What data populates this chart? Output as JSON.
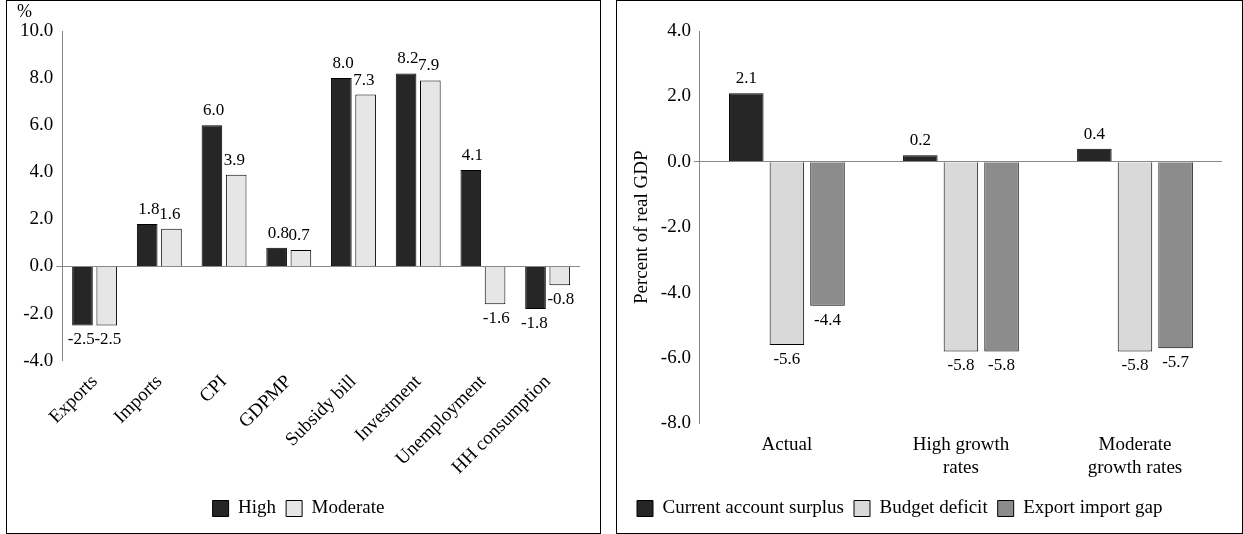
{
  "chart_data": [
    {
      "type": "bar",
      "ylabel": "%",
      "categories": [
        "Exports",
        "Imports",
        "CPI",
        "GDPMP",
        "Subsidy bill",
        "Investment",
        "Unemployment",
        "HH consumption"
      ],
      "series": [
        {
          "name": "High",
          "color": "#262626",
          "values": [
            -2.5,
            1.8,
            6.0,
            0.8,
            8.0,
            8.2,
            4.1,
            -1.8
          ],
          "value_labels": [
            "-2.5",
            "1.8",
            "6.0",
            "0.8",
            "8.0",
            "8.2",
            "4.1",
            "-1.8"
          ]
        },
        {
          "name": "Moderate",
          "color": "#e6e6e6",
          "values": [
            -2.5,
            1.6,
            3.9,
            0.7,
            7.3,
            7.9,
            -1.6,
            -0.8
          ],
          "value_labels": [
            "-2.5",
            "1.6",
            "3.9",
            "0.7",
            "7.3",
            "7.9",
            "-1.6",
            "-0.8"
          ]
        }
      ],
      "ylim": [
        -4,
        10
      ],
      "yticks": [
        {
          "value": -4,
          "label": "-4.0"
        },
        {
          "value": -2,
          "label": "-2.0"
        },
        {
          "value": 0,
          "label": "0.0"
        },
        {
          "value": 2,
          "label": "2.0"
        },
        {
          "value": 4,
          "label": "4.0"
        },
        {
          "value": 6,
          "label": "6.0"
        },
        {
          "value": 8,
          "label": "8.0"
        },
        {
          "value": 10,
          "label": "10.0"
        }
      ],
      "legend": "bottom"
    },
    {
      "type": "bar",
      "ylabel": "Percent of real GDP",
      "categories": [
        "Actual",
        "High growth rates",
        "Moderate growth rates"
      ],
      "series": [
        {
          "name": "Current account surplus",
          "color": "#262626",
          "values": [
            2.1,
            0.2,
            0.4
          ],
          "value_labels": [
            "2.1",
            "0.2",
            "0.4"
          ]
        },
        {
          "name": "Budget deficit",
          "color": "#d9d9d9",
          "values": [
            -5.6,
            -5.8,
            -5.8
          ],
          "value_labels": [
            "-5.6",
            "-5.8",
            "-5.8"
          ]
        },
        {
          "name": "Export import gap",
          "color": "#8c8c8c",
          "values": [
            -4.4,
            -5.8,
            -5.7
          ],
          "value_labels": [
            "-4.4",
            "-5.8",
            "-5.7"
          ]
        }
      ],
      "ylim": [
        -8,
        4
      ],
      "yticks": [
        {
          "value": -8,
          "label": "-8.0"
        },
        {
          "value": -6,
          "label": "-6.0"
        },
        {
          "value": -4,
          "label": "-4.0"
        },
        {
          "value": -2,
          "label": "-2.0"
        },
        {
          "value": 0,
          "label": "0.0"
        },
        {
          "value": 2,
          "label": "2.0"
        },
        {
          "value": 4,
          "label": "4.0"
        }
      ],
      "legend": "bottom"
    }
  ]
}
